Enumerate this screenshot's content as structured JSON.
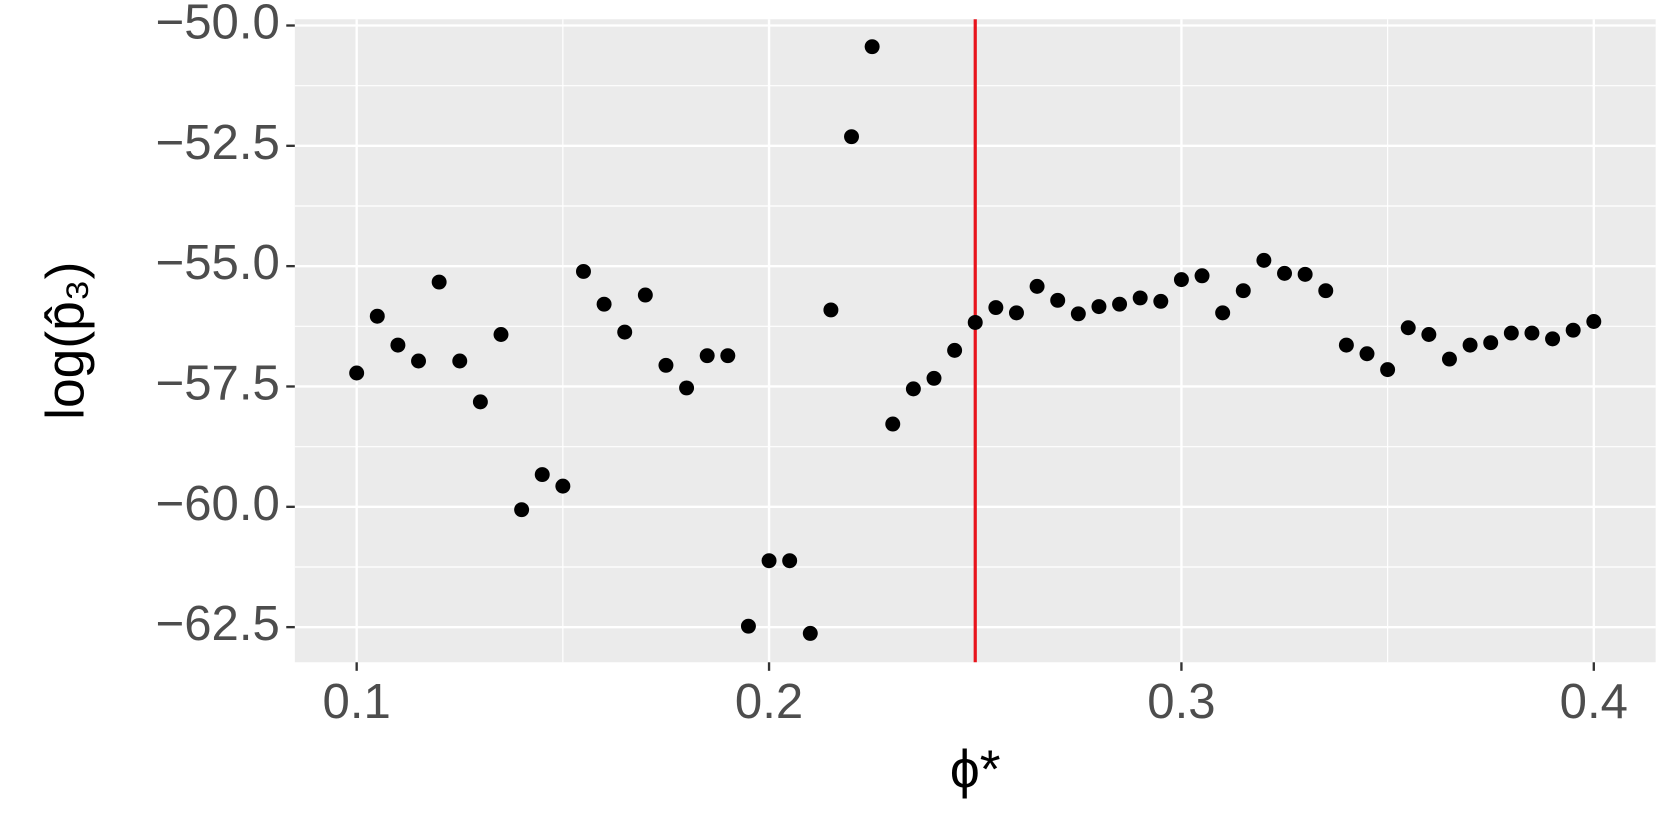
{
  "chart_data": {
    "type": "scatter",
    "x_label": "ϕ*",
    "y_label": "log(p̂₃)",
    "x": [
      0.1,
      0.105,
      0.11,
      0.115,
      0.12,
      0.125,
      0.13,
      0.135,
      0.14,
      0.145,
      0.15,
      0.155,
      0.16,
      0.165,
      0.17,
      0.175,
      0.18,
      0.185,
      0.19,
      0.195,
      0.2,
      0.205,
      0.21,
      0.215,
      0.22,
      0.225,
      0.23,
      0.235,
      0.24,
      0.245,
      0.25,
      0.255,
      0.26,
      0.265,
      0.27,
      0.275,
      0.28,
      0.285,
      0.29,
      0.295,
      0.3,
      0.305,
      0.31,
      0.315,
      0.32,
      0.325,
      0.33,
      0.335,
      0.34,
      0.345,
      0.35,
      0.355,
      0.36,
      0.365,
      0.37,
      0.375,
      0.38,
      0.385,
      0.39,
      0.395,
      0.4
    ],
    "values": [
      -57.22,
      -56.04,
      -56.64,
      -56.97,
      -55.33,
      -56.97,
      -57.82,
      -56.42,
      -60.06,
      -59.33,
      -59.57,
      -55.11,
      -55.79,
      -56.37,
      -55.6,
      -57.06,
      -57.53,
      -56.86,
      -56.86,
      -62.48,
      -61.12,
      -61.12,
      -62.63,
      -55.91,
      -52.31,
      -50.44,
      -58.28,
      -57.55,
      -57.33,
      -56.75,
      -56.17,
      -55.86,
      -55.97,
      -55.42,
      -55.71,
      -55.99,
      -55.84,
      -55.79,
      -55.66,
      -55.73,
      -55.28,
      -55.2,
      -55.97,
      -55.51,
      -54.88,
      -55.15,
      -55.17,
      -55.51,
      -56.64,
      -56.82,
      -57.15,
      -56.28,
      -56.42,
      -56.93,
      -56.64,
      -56.59,
      -56.39,
      -56.39,
      -56.51,
      -56.33,
      -56.15
    ],
    "color": "#000000",
    "vline": {
      "x": 0.25,
      "color": "#e8141c"
    },
    "xlim": [
      0.085,
      0.415
    ],
    "xticks": [
      0.1,
      0.2,
      0.3,
      0.4
    ],
    "ylim": [
      -63.23,
      -49.87
    ],
    "yticks": [
      {
        "value": -62.5,
        "label": "−62.5"
      },
      {
        "value": -60,
        "label": "−60.0"
      },
      {
        "value": -57.5,
        "label": "−57.5"
      },
      {
        "value": -55,
        "label": "−55.0"
      },
      {
        "value": -52.5,
        "label": "−52.5"
      },
      {
        "value": -50,
        "label": "−50.0"
      }
    ],
    "grid": true,
    "panel_color": "#ebebeb"
  }
}
